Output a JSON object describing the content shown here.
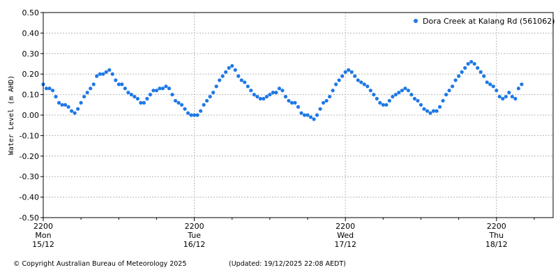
{
  "chart_data": {
    "type": "scatter",
    "title": "",
    "xlabel": "",
    "ylabel": "Water Level (m AHD)",
    "ylim": [
      -0.5,
      0.5
    ],
    "yticks": [
      "0.50",
      "0.40",
      "0.30",
      "0.20",
      "0.10",
      "0.00",
      "-0.10",
      "-0.20",
      "-0.30",
      "-0.40",
      "-0.50"
    ],
    "xrange_hours": [
      0,
      81
    ],
    "xticks": [
      {
        "time": "2200",
        "day": "Mon",
        "date": "15/12"
      },
      {
        "time": "2200",
        "day": "Tue",
        "date": "16/12"
      },
      {
        "time": "2200",
        "day": "Wed",
        "date": "17/12"
      },
      {
        "time": "2200",
        "day": "Thu",
        "date": "18/12"
      }
    ],
    "grid": true,
    "legend_position": "top-right",
    "series": [
      {
        "name": "Dora Creek at Kalang Rd (561062)",
        "color": "#1E78E6",
        "points": [
          [
            0.0,
            0.15
          ],
          [
            0.5,
            0.13
          ],
          [
            1.0,
            0.13
          ],
          [
            1.5,
            0.12
          ],
          [
            2.0,
            0.09
          ],
          [
            2.5,
            0.06
          ],
          [
            3.0,
            0.05
          ],
          [
            3.5,
            0.05
          ],
          [
            4.0,
            0.04
          ],
          [
            4.5,
            0.02
          ],
          [
            5.0,
            0.01
          ],
          [
            5.5,
            0.03
          ],
          [
            6.0,
            0.06
          ],
          [
            6.5,
            0.09
          ],
          [
            7.0,
            0.11
          ],
          [
            7.5,
            0.13
          ],
          [
            8.0,
            0.15
          ],
          [
            8.5,
            0.19
          ],
          [
            9.0,
            0.2
          ],
          [
            9.5,
            0.2
          ],
          [
            10.0,
            0.21
          ],
          [
            10.5,
            0.22
          ],
          [
            11.0,
            0.2
          ],
          [
            11.5,
            0.17
          ],
          [
            12.0,
            0.15
          ],
          [
            12.5,
            0.15
          ],
          [
            13.0,
            0.13
          ],
          [
            13.5,
            0.11
          ],
          [
            14.0,
            0.1
          ],
          [
            14.5,
            0.09
          ],
          [
            15.0,
            0.08
          ],
          [
            15.5,
            0.06
          ],
          [
            16.0,
            0.06
          ],
          [
            16.5,
            0.08
          ],
          [
            17.0,
            0.1
          ],
          [
            17.5,
            0.12
          ],
          [
            18.0,
            0.12
          ],
          [
            18.5,
            0.13
          ],
          [
            19.0,
            0.13
          ],
          [
            19.5,
            0.14
          ],
          [
            20.0,
            0.13
          ],
          [
            20.5,
            0.1
          ],
          [
            21.0,
            0.07
          ],
          [
            21.5,
            0.06
          ],
          [
            22.0,
            0.05
          ],
          [
            22.5,
            0.03
          ],
          [
            23.0,
            0.01
          ],
          [
            23.5,
            0.0
          ],
          [
            24.0,
            0.0
          ],
          [
            24.5,
            0.0
          ],
          [
            25.0,
            0.02
          ],
          [
            25.5,
            0.05
          ],
          [
            26.0,
            0.07
          ],
          [
            26.5,
            0.09
          ],
          [
            27.0,
            0.11
          ],
          [
            27.5,
            0.14
          ],
          [
            28.0,
            0.17
          ],
          [
            28.5,
            0.19
          ],
          [
            29.0,
            0.21
          ],
          [
            29.5,
            0.23
          ],
          [
            30.0,
            0.24
          ],
          [
            30.5,
            0.22
          ],
          [
            31.0,
            0.19
          ],
          [
            31.5,
            0.17
          ],
          [
            32.0,
            0.16
          ],
          [
            32.5,
            0.14
          ],
          [
            33.0,
            0.12
          ],
          [
            33.5,
            0.1
          ],
          [
            34.0,
            0.09
          ],
          [
            34.5,
            0.08
          ],
          [
            35.0,
            0.08
          ],
          [
            35.5,
            0.09
          ],
          [
            36.0,
            0.1
          ],
          [
            36.5,
            0.11
          ],
          [
            37.0,
            0.11
          ],
          [
            37.5,
            0.13
          ],
          [
            38.0,
            0.12
          ],
          [
            38.5,
            0.09
          ],
          [
            39.0,
            0.07
          ],
          [
            39.5,
            0.06
          ],
          [
            40.0,
            0.06
          ],
          [
            40.5,
            0.04
          ],
          [
            41.0,
            0.01
          ],
          [
            41.5,
            0.0
          ],
          [
            42.0,
            0.0
          ],
          [
            42.5,
            -0.01
          ],
          [
            43.0,
            -0.02
          ],
          [
            43.5,
            0.0
          ],
          [
            44.0,
            0.03
          ],
          [
            44.5,
            0.06
          ],
          [
            45.0,
            0.07
          ],
          [
            45.5,
            0.09
          ],
          [
            46.0,
            0.12
          ],
          [
            46.5,
            0.15
          ],
          [
            47.0,
            0.17
          ],
          [
            47.5,
            0.19
          ],
          [
            48.0,
            0.21
          ],
          [
            48.5,
            0.22
          ],
          [
            49.0,
            0.21
          ],
          [
            49.5,
            0.19
          ],
          [
            50.0,
            0.17
          ],
          [
            50.5,
            0.16
          ],
          [
            51.0,
            0.15
          ],
          [
            51.5,
            0.14
          ],
          [
            52.0,
            0.12
          ],
          [
            52.5,
            0.1
          ],
          [
            53.0,
            0.08
          ],
          [
            53.5,
            0.06
          ],
          [
            54.0,
            0.05
          ],
          [
            54.5,
            0.05
          ],
          [
            55.0,
            0.07
          ],
          [
            55.5,
            0.09
          ],
          [
            56.0,
            0.1
          ],
          [
            56.5,
            0.11
          ],
          [
            57.0,
            0.12
          ],
          [
            57.5,
            0.13
          ],
          [
            58.0,
            0.12
          ],
          [
            58.5,
            0.1
          ],
          [
            59.0,
            0.08
          ],
          [
            59.5,
            0.07
          ],
          [
            60.0,
            0.05
          ],
          [
            60.5,
            0.03
          ],
          [
            61.0,
            0.02
          ],
          [
            61.5,
            0.01
          ],
          [
            62.0,
            0.02
          ],
          [
            62.5,
            0.02
          ],
          [
            63.0,
            0.04
          ],
          [
            63.5,
            0.07
          ],
          [
            64.0,
            0.1
          ],
          [
            64.5,
            0.12
          ],
          [
            65.0,
            0.14
          ],
          [
            65.5,
            0.17
          ],
          [
            66.0,
            0.19
          ],
          [
            66.5,
            0.21
          ],
          [
            67.0,
            0.23
          ],
          [
            67.5,
            0.25
          ],
          [
            68.0,
            0.26
          ],
          [
            68.5,
            0.25
          ],
          [
            69.0,
            0.23
          ],
          [
            69.5,
            0.21
          ],
          [
            70.0,
            0.19
          ],
          [
            70.5,
            0.16
          ],
          [
            71.0,
            0.15
          ],
          [
            71.5,
            0.14
          ],
          [
            72.0,
            0.12
          ],
          [
            72.5,
            0.09
          ],
          [
            73.0,
            0.08
          ],
          [
            73.5,
            0.09
          ],
          [
            74.0,
            0.11
          ],
          [
            74.5,
            0.09
          ],
          [
            75.0,
            0.08
          ],
          [
            75.5,
            0.13
          ],
          [
            76.0,
            0.15
          ]
        ]
      }
    ]
  },
  "footer": {
    "copyright": "© Copyright Australian Bureau of Meteorology 2025",
    "updated": "(Updated: 19/12/2025 22:08 AEDT)"
  }
}
